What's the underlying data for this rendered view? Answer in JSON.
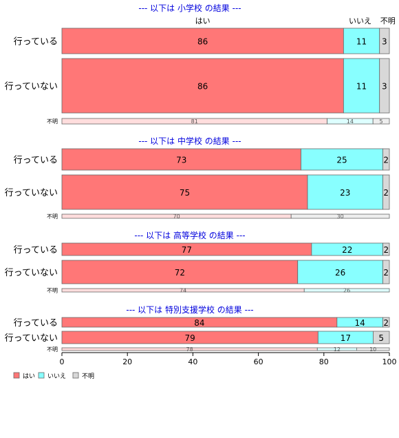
{
  "chart_data": {
    "type": "bar",
    "orientation": "horizontal",
    "stacked": true,
    "percent": true,
    "xlim": [
      0,
      100
    ],
    "xticks": [
      0,
      20,
      40,
      60,
      80,
      100
    ],
    "grid": false,
    "legend_position": "bottom-left",
    "series": [
      {
        "name": "はい",
        "color": "#ff7777"
      },
      {
        "name": "いいえ",
        "color": "#88ffff"
      },
      {
        "name": "不明",
        "color": "#d8d8d8"
      }
    ],
    "column_headers": [
      "はい",
      "いいえ",
      "不明"
    ],
    "groups": [
      {
        "title": "--- 以下は 小学校 の結果 ---",
        "rows": [
          {
            "label": "行っている",
            "values": [
              86,
              11,
              3
            ]
          },
          {
            "label": "行っていない",
            "values": [
              86,
              11,
              3
            ]
          },
          {
            "label": "不明",
            "values": [
              81,
              14,
              5
            ]
          }
        ]
      },
      {
        "title": "--- 以下は 中学校 の結果 ---",
        "rows": [
          {
            "label": "行っている",
            "values": [
              73,
              25,
              2
            ]
          },
          {
            "label": "行っていない",
            "values": [
              75,
              23,
              2
            ]
          },
          {
            "label": "不明",
            "values": [
              70,
              0,
              30
            ]
          }
        ]
      },
      {
        "title": "--- 以下は 高等学校 の結果 ---",
        "rows": [
          {
            "label": "行っている",
            "values": [
              77,
              22,
              2
            ]
          },
          {
            "label": "行っていない",
            "values": [
              72,
              26,
              2
            ]
          },
          {
            "label": "不明",
            "values": [
              74,
              26,
              0
            ]
          }
        ]
      },
      {
        "title": "--- 以下は 特別支援学校 の結果 ---",
        "rows": [
          {
            "label": "行っている",
            "values": [
              84,
              14,
              2
            ]
          },
          {
            "label": "行っていない",
            "values": [
              79,
              17,
              5
            ]
          },
          {
            "label": "不明",
            "values": [
              78,
              12,
              10
            ]
          }
        ]
      }
    ]
  }
}
